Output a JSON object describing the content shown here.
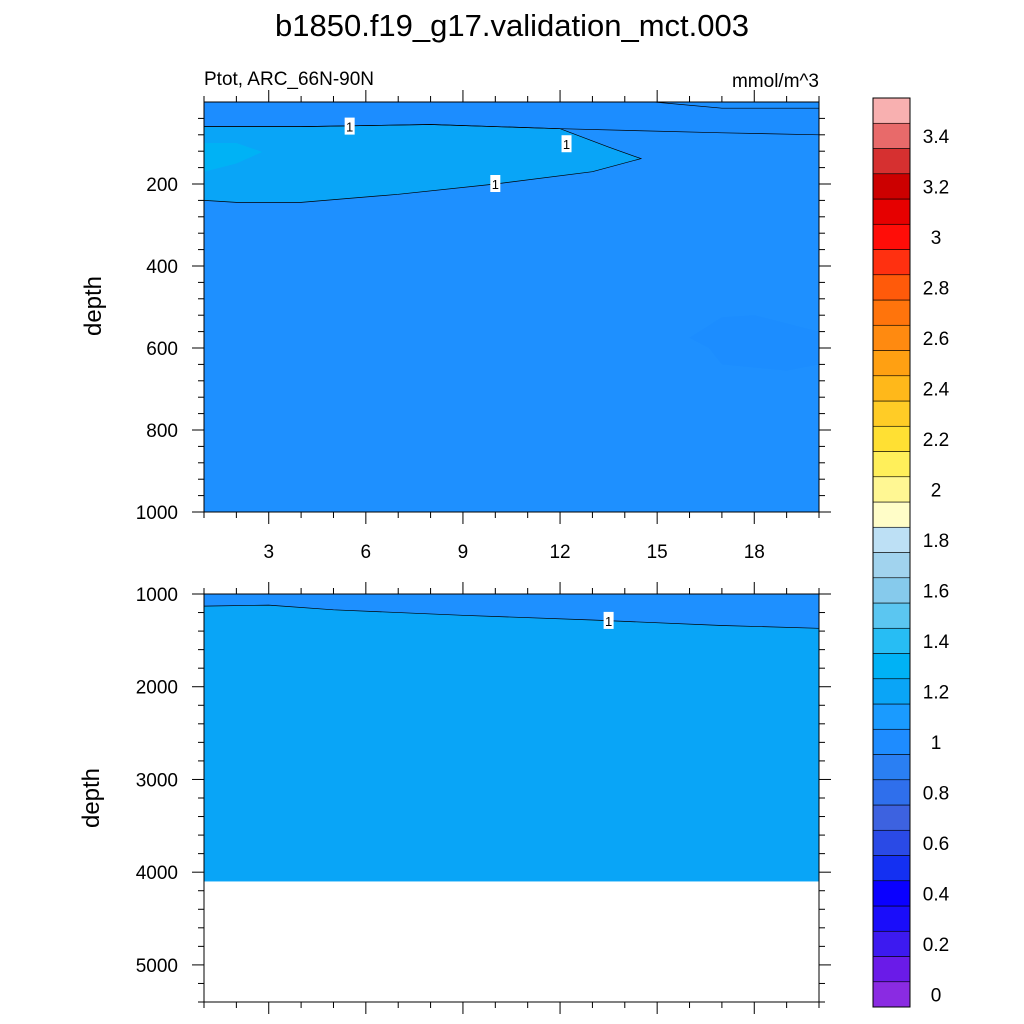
{
  "title": "b1850.f19_g17.validation_mct.003",
  "colors": {
    "background_fill": "#1e90ff",
    "fill_0_8": "#1c8dff",
    "fill_1_0": "#09a5f7",
    "fill_1_1": "#00b2f5",
    "missing": "#ffffff"
  },
  "chart_data": [
    {
      "type": "contour",
      "panel": "upper",
      "subtitle_left": "Ptot, ARC_66N-90N",
      "subtitle_right": "mmol/m^3",
      "ylabel": "depth",
      "xlabel": "",
      "xlim": [
        1,
        20
      ],
      "ylim": [
        0,
        1000
      ],
      "y_reversed": true,
      "x_ticks": [
        3,
        6,
        9,
        12,
        15,
        18
      ],
      "x_tick_labels": [
        "3",
        "6",
        "9",
        "12",
        "15",
        "18"
      ],
      "y_ticks": [
        200,
        400,
        600,
        800,
        1000
      ],
      "y_tick_labels": [
        "200",
        "400",
        "600",
        "800",
        "1000"
      ],
      "background_level": 0.9,
      "regions": [
        {
          "level": "0.8-0.9",
          "points": [
            [
              1,
              0
            ],
            [
              2,
              45
            ],
            [
              3,
              30
            ],
            [
              4.8,
              0
            ]
          ]
        },
        {
          "level": "0.8-0.9",
          "points": [
            [
              14.9,
              0
            ],
            [
              17,
              15
            ],
            [
              20,
              15
            ],
            [
              20,
              80
            ],
            [
              17,
              75
            ],
            [
              12,
              65
            ],
            [
              8,
              55
            ],
            [
              4,
              60
            ],
            [
              1,
              60
            ],
            [
              1,
              0
            ]
          ]
        },
        {
          "level": "1.0-1.1",
          "points": [
            [
              1,
              60
            ],
            [
              4,
              60
            ],
            [
              8,
              55
            ],
            [
              12,
              65
            ],
            [
              13.5,
              110
            ],
            [
              14.5,
              138
            ],
            [
              13,
              170
            ],
            [
              10,
              200
            ],
            [
              7,
              225
            ],
            [
              4,
              245
            ],
            [
              2,
              245
            ],
            [
              1,
              240
            ]
          ]
        },
        {
          "level": "1.1-1.2",
          "points": [
            [
              1,
              100
            ],
            [
              2,
              100
            ],
            [
              2.8,
              122
            ],
            [
              2,
              150
            ],
            [
              1,
              170
            ]
          ]
        },
        {
          "level": "0.8-0.9",
          "points": [
            [
              16,
              575
            ],
            [
              17,
              525
            ],
            [
              18,
              520
            ],
            [
              20,
              560
            ],
            [
              20,
              640
            ],
            [
              19,
              655
            ],
            [
              17,
              640
            ],
            [
              16.6,
              600
            ]
          ]
        }
      ],
      "contour_lines": [
        {
          "level": 1,
          "points": [
            [
              1,
              60
            ],
            [
              4,
              60
            ],
            [
              8,
              55
            ],
            [
              12,
              65
            ],
            [
              13.5,
              110
            ],
            [
              14.5,
              138
            ],
            [
              13,
              170
            ],
            [
              10,
              200
            ],
            [
              7,
              225
            ],
            [
              4,
              245
            ],
            [
              2,
              245
            ],
            [
              1,
              240
            ]
          ]
        },
        {
          "level": 0.9,
          "points": [
            [
              14.9,
              0
            ],
            [
              17,
              15
            ],
            [
              20,
              15
            ]
          ]
        },
        {
          "level": 0.9,
          "points": [
            [
              20,
              80
            ],
            [
              17,
              75
            ],
            [
              12,
              65
            ],
            [
              8,
              55
            ],
            [
              4,
              60
            ],
            [
              1,
              60
            ]
          ]
        }
      ],
      "contour_labels": [
        {
          "text": "1",
          "x": 5.5,
          "y": 60
        },
        {
          "text": "1",
          "x": 12.2,
          "y": 103
        },
        {
          "text": "1",
          "x": 10,
          "y": 200
        }
      ]
    },
    {
      "type": "contour",
      "panel": "lower",
      "ylabel": "depth",
      "xlabel": "",
      "xlim": [
        1,
        20
      ],
      "ylim": [
        1000,
        5400
      ],
      "y_reversed": true,
      "x_ticks": [
        3,
        6,
        9,
        12,
        15,
        18
      ],
      "x_tick_labels": [],
      "y_ticks": [
        1000,
        2000,
        3000,
        4000,
        5000
      ],
      "y_tick_labels": [
        "1000",
        "2000",
        "3000",
        "4000",
        "5000"
      ],
      "background_level": 1.0,
      "ocean_floor_depth": 4100,
      "regions": [
        {
          "level": "0.9-1.0",
          "points": [
            [
              1,
              1000
            ],
            [
              20,
              1000
            ],
            [
              20,
              1370
            ],
            [
              17,
              1340
            ],
            [
              13,
              1280
            ],
            [
              9,
              1230
            ],
            [
              5,
              1170
            ],
            [
              3,
              1120
            ],
            [
              1,
              1130
            ]
          ]
        }
      ],
      "contour_lines": [
        {
          "level": 1,
          "points": [
            [
              1,
              1130
            ],
            [
              3,
              1120
            ],
            [
              5,
              1170
            ],
            [
              9,
              1230
            ],
            [
              13,
              1280
            ],
            [
              17,
              1340
            ],
            [
              20,
              1370
            ]
          ]
        }
      ],
      "contour_labels": [
        {
          "text": "1",
          "x": 13.5,
          "y": 1290
        }
      ]
    }
  ],
  "colorbar": {
    "colors": [
      "#8a2be2",
      "#6a1be8",
      "#3d1af0",
      "#1a0dfa",
      "#0a00ff",
      "#1430f2",
      "#2a4ae6",
      "#3d62e0",
      "#2f6fec",
      "#2a7ff3",
      "#1e8cff",
      "#1a9bff",
      "#0aa5f7",
      "#00b2f5",
      "#27bdf4",
      "#5bc6f1",
      "#86caec",
      "#a1d3ee",
      "#bde0f5",
      "#fffdc8",
      "#fff793",
      "#ffef5a",
      "#ffe033",
      "#ffcc26",
      "#ffb81a",
      "#ffa012",
      "#ff8a10",
      "#ff740c",
      "#ff5a0a",
      "#ff3010",
      "#ff0d08",
      "#e60000",
      "#cc0000",
      "#d63030",
      "#e86a6a",
      "#f8b0b0"
    ],
    "labels": [
      "0",
      "0.2",
      "0.4",
      "0.6",
      "0.8",
      "1",
      "1.2",
      "1.4",
      "1.6",
      "1.8",
      "2",
      "2.2",
      "2.4",
      "2.6",
      "2.8",
      "3",
      "3.2",
      "3.4"
    ]
  }
}
